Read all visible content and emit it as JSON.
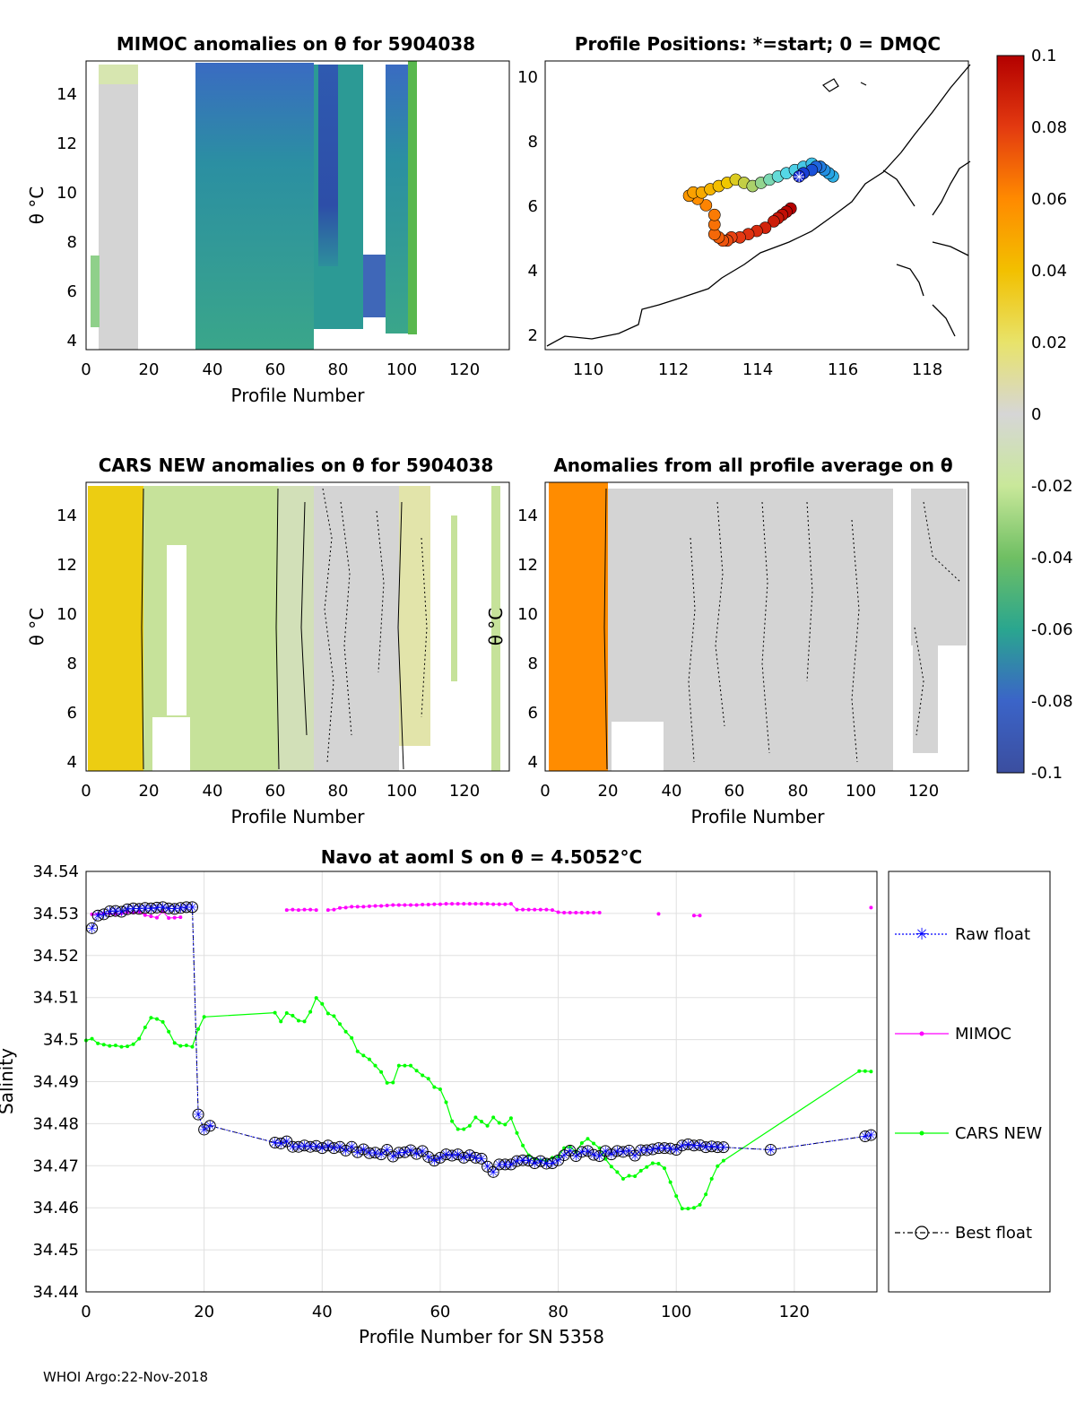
{
  "panels": {
    "mimoc": {
      "title": "MIMOC anomalies on θ  for 5904038",
      "xlabel": "Profile Number",
      "ylabel": "θ °C",
      "xticks": [
        "0",
        "20",
        "40",
        "60",
        "80",
        "100",
        "120"
      ],
      "yticks": [
        "4",
        "6",
        "8",
        "10",
        "12",
        "14"
      ],
      "xlim": [
        0,
        134
      ],
      "ylim": [
        3.5,
        15.2
      ]
    },
    "positions": {
      "title": "Profile Positions: *=start; 0 = DMQC",
      "xticks": [
        "110",
        "112",
        "114",
        "116",
        "118"
      ],
      "yticks": [
        "2",
        "4",
        "6",
        "8",
        "10"
      ],
      "xlim": [
        109,
        119
      ],
      "ylim": [
        1.5,
        10.5
      ]
    },
    "cars": {
      "title": "CARS NEW anomalies on θ for 5904038",
      "xlabel": "Profile Number",
      "ylabel": "θ °C",
      "xticks": [
        "0",
        "20",
        "40",
        "60",
        "80",
        "100",
        "120"
      ],
      "yticks": [
        "4",
        "6",
        "8",
        "10",
        "12",
        "14"
      ],
      "xlim": [
        0,
        134
      ],
      "ylim": [
        3.5,
        15.2
      ]
    },
    "allavg": {
      "title": "Anomalies from all profile average on θ",
      "xlabel": "Profile Number",
      "ylabel": "θ °C",
      "xticks": [
        "0",
        "20",
        "40",
        "60",
        "80",
        "100",
        "120"
      ],
      "yticks": [
        "4",
        "6",
        "8",
        "10",
        "12",
        "14"
      ],
      "xlim": [
        0,
        134
      ],
      "ylim": [
        3.5,
        15.2
      ]
    }
  },
  "colorbar": {
    "ticks": [
      "0.1",
      "0.08",
      "0.06",
      "0.04",
      "0.02",
      "0",
      "-0.02",
      "-0.04",
      "-0.06",
      "-0.08",
      "-0.1"
    ],
    "range": [
      -0.1,
      0.1
    ]
  },
  "chart_data": {
    "type": "line",
    "title": "Navo at aoml S on θ = 4.5052°C",
    "xlabel": "Profile Number for SN 5358",
    "ylabel": "Salinity",
    "xlim": [
      0,
      134
    ],
    "ylim": [
      34.44,
      34.54
    ],
    "xticks": [
      "0",
      "20",
      "40",
      "60",
      "80",
      "100",
      "120"
    ],
    "yticks": [
      "34.44",
      "34.45",
      "34.46",
      "34.47",
      "34.48",
      "34.49",
      "34.5",
      "34.51",
      "34.52",
      "34.53",
      "34.54"
    ],
    "legend": [
      "Raw float",
      "MIMOC",
      "CARS NEW",
      "Best float"
    ],
    "series": [
      {
        "name": "Raw float",
        "color": "#0000ff",
        "x": [
          1,
          2,
          3,
          4,
          5,
          6,
          7,
          8,
          9,
          10,
          11,
          12,
          13,
          14,
          15,
          16,
          17,
          18,
          19,
          20,
          21,
          32,
          33,
          34,
          35,
          36,
          37,
          38,
          39,
          40,
          41,
          42,
          43,
          44,
          45,
          46,
          47,
          48,
          49,
          50,
          51,
          52,
          53,
          54,
          55,
          56,
          57,
          58,
          59,
          60,
          61,
          62,
          63,
          64,
          65,
          66,
          67,
          68,
          69,
          70,
          71,
          72,
          73,
          74,
          75,
          76,
          77,
          78,
          79,
          80,
          81,
          82,
          83,
          84,
          85,
          86,
          87,
          88,
          89,
          90,
          91,
          92,
          93,
          94,
          95,
          96,
          97,
          98,
          99,
          100,
          101,
          102,
          103,
          104,
          105,
          106,
          107,
          108,
          116,
          132,
          133
        ],
        "y": [
          34.5265,
          34.5295,
          34.5298,
          34.5305,
          34.5306,
          34.5304,
          34.531,
          34.5312,
          34.5311,
          34.5313,
          34.5312,
          34.5314,
          34.5315,
          34.5312,
          34.5311,
          34.5313,
          34.5315,
          34.5315,
          34.4822,
          34.4786,
          34.4795,
          34.4755,
          34.4753,
          34.4758,
          34.4745,
          34.4745,
          34.4748,
          34.4745,
          34.4747,
          34.4742,
          34.4748,
          34.4742,
          34.4745,
          34.4736,
          34.4745,
          34.4732,
          34.4739,
          34.473,
          34.4731,
          34.4727,
          34.4738,
          34.4722,
          34.4731,
          34.4732,
          34.4737,
          34.4728,
          34.4735,
          34.4721,
          34.4712,
          34.4719,
          34.4727,
          34.4724,
          34.4727,
          34.4719,
          34.4725,
          34.4719,
          34.4717,
          34.4698,
          34.4685,
          34.4703,
          34.4703,
          34.4703,
          34.4711,
          34.4713,
          34.4712,
          34.4706,
          34.4711,
          34.4705,
          34.4706,
          34.4713,
          34.4725,
          34.4736,
          34.4723,
          34.4733,
          34.4735,
          34.4726,
          34.4723,
          34.4735,
          34.4727,
          34.4735,
          34.4733,
          34.4736,
          34.4724,
          34.4737,
          34.4737,
          34.4739,
          34.4742,
          34.4742,
          34.4741,
          34.4738,
          34.4748,
          34.4751,
          34.4748,
          34.4749,
          34.4744,
          34.4746,
          34.4744,
          34.4744,
          34.4738,
          34.477,
          34.4773
        ]
      },
      {
        "name": "MIMOC",
        "color": "#ff00ff",
        "x": [
          1,
          2,
          3,
          4,
          5,
          6,
          7,
          8,
          9,
          10,
          11,
          12,
          13,
          14,
          15,
          16,
          34,
          35,
          36,
          37,
          38,
          39,
          41,
          42,
          43,
          44,
          45,
          46,
          47,
          48,
          49,
          50,
          51,
          52,
          53,
          54,
          55,
          56,
          57,
          58,
          59,
          60,
          61,
          62,
          63,
          64,
          65,
          66,
          67,
          68,
          69,
          70,
          71,
          72,
          73,
          74,
          75,
          76,
          77,
          78,
          79,
          80,
          81,
          82,
          83,
          84,
          85,
          86,
          87,
          97,
          103,
          104,
          133
        ],
        "y": [
          34.5298,
          34.5298,
          34.53,
          34.53,
          34.5299,
          34.53,
          34.5303,
          34.5302,
          34.5304,
          34.5296,
          34.5293,
          34.529,
          34.5305,
          34.5289,
          34.529,
          34.5291,
          34.5308,
          34.5309,
          34.5308,
          34.5309,
          34.5309,
          34.5308,
          34.5308,
          34.5309,
          34.5313,
          34.5314,
          34.5316,
          34.5316,
          34.5316,
          34.5317,
          34.5318,
          34.5318,
          34.5319,
          34.532,
          34.532,
          34.532,
          34.532,
          34.532,
          34.5321,
          34.5321,
          34.5322,
          34.5322,
          34.5323,
          34.5323,
          34.5323,
          34.5323,
          34.5323,
          34.5323,
          34.5323,
          34.5323,
          34.5322,
          34.5322,
          34.5322,
          34.5323,
          34.5309,
          34.5309,
          34.5309,
          34.5309,
          34.5309,
          34.5309,
          34.5308,
          34.5303,
          34.5302,
          34.5302,
          34.5302,
          34.5302,
          34.5302,
          34.5302,
          34.5302,
          34.5299,
          34.5295,
          34.5295,
          34.5314
        ]
      },
      {
        "name": "CARS NEW",
        "color": "#00ff00",
        "x": [
          0,
          1,
          2,
          3,
          4,
          5,
          6,
          7,
          8,
          9,
          10,
          11,
          12,
          13,
          14,
          15,
          16,
          17,
          18,
          19,
          20,
          32,
          33,
          34,
          35,
          36,
          37,
          38,
          39,
          40,
          41,
          42,
          43,
          44,
          45,
          46,
          47,
          48,
          49,
          50,
          51,
          52,
          53,
          54,
          55,
          56,
          57,
          58,
          59,
          60,
          61,
          62,
          63,
          64,
          65,
          66,
          67,
          68,
          69,
          70,
          71,
          72,
          73,
          74,
          75,
          76,
          77,
          78,
          79,
          80,
          81,
          82,
          83,
          84,
          85,
          86,
          87,
          88,
          89,
          90,
          91,
          92,
          93,
          94,
          95,
          96,
          97,
          98,
          99,
          100,
          101,
          102,
          103,
          104,
          105,
          106,
          107,
          108,
          131,
          132,
          133
        ],
        "y": [
          34.4998,
          34.5002,
          34.4991,
          34.4988,
          34.4985,
          34.4986,
          34.4983,
          34.4984,
          34.4989,
          34.5002,
          34.5029,
          34.5052,
          34.5049,
          34.5042,
          34.5019,
          34.4992,
          34.4985,
          34.4986,
          34.4983,
          34.5025,
          34.5054,
          34.5064,
          34.5043,
          34.5063,
          34.5057,
          34.5045,
          34.5043,
          34.5066,
          34.5099,
          34.5085,
          34.5062,
          34.5056,
          34.5037,
          34.5019,
          34.5004,
          34.4972,
          34.4962,
          34.4953,
          34.4938,
          34.4923,
          34.4897,
          34.4898,
          34.4938,
          34.4938,
          34.4938,
          34.4926,
          34.4915,
          34.4907,
          34.4887,
          34.4882,
          34.4851,
          34.4806,
          34.4787,
          34.4787,
          34.4795,
          34.4815,
          34.4805,
          34.4795,
          34.4815,
          34.4802,
          34.4798,
          34.4813,
          34.4778,
          34.4748,
          34.4725,
          34.4716,
          34.4713,
          34.4712,
          34.4719,
          34.4722,
          34.4742,
          34.4745,
          34.4733,
          34.4754,
          34.4764,
          34.4753,
          34.4742,
          34.4716,
          34.4698,
          34.4685,
          34.4669,
          34.4676,
          34.4675,
          34.4688,
          34.4697,
          34.4706,
          34.4705,
          34.4694,
          34.4661,
          34.4628,
          34.4598,
          34.4598,
          34.46,
          34.4607,
          34.4632,
          34.4669,
          34.4699,
          34.4712,
          34.4925,
          34.4925,
          34.4924
        ]
      },
      {
        "name": "Best float",
        "color": "#000000",
        "x": [
          1,
          2,
          3,
          4,
          5,
          6,
          7,
          8,
          9,
          10,
          11,
          12,
          13,
          14,
          15,
          16,
          17,
          18,
          19,
          20,
          21,
          32,
          33,
          34,
          35,
          36,
          37,
          38,
          39,
          40,
          41,
          42,
          43,
          44,
          45,
          46,
          47,
          48,
          49,
          50,
          51,
          52,
          53,
          54,
          55,
          56,
          57,
          58,
          59,
          60,
          61,
          62,
          63,
          64,
          65,
          66,
          67,
          68,
          69,
          70,
          71,
          72,
          73,
          74,
          75,
          76,
          77,
          78,
          79,
          80,
          81,
          82,
          83,
          84,
          85,
          86,
          87,
          88,
          89,
          90,
          91,
          92,
          93,
          94,
          95,
          96,
          97,
          98,
          99,
          100,
          101,
          102,
          103,
          104,
          105,
          106,
          107,
          108,
          116,
          132,
          133
        ],
        "y": [
          34.5265,
          34.5295,
          34.5298,
          34.5305,
          34.5306,
          34.5304,
          34.531,
          34.5312,
          34.5311,
          34.5313,
          34.5312,
          34.5314,
          34.5315,
          34.5312,
          34.5311,
          34.5313,
          34.5315,
          34.5315,
          34.4822,
          34.4786,
          34.4795,
          34.4755,
          34.4753,
          34.4758,
          34.4745,
          34.4745,
          34.4748,
          34.4745,
          34.4747,
          34.4742,
          34.4748,
          34.4742,
          34.4745,
          34.4736,
          34.4745,
          34.4732,
          34.4739,
          34.473,
          34.4731,
          34.4727,
          34.4738,
          34.4722,
          34.4731,
          34.4732,
          34.4737,
          34.4728,
          34.4735,
          34.4721,
          34.4712,
          34.4719,
          34.4727,
          34.4724,
          34.4727,
          34.4719,
          34.4725,
          34.4719,
          34.4717,
          34.4698,
          34.4685,
          34.4703,
          34.4703,
          34.4703,
          34.4711,
          34.4713,
          34.4712,
          34.4706,
          34.4711,
          34.4705,
          34.4706,
          34.4713,
          34.4725,
          34.4736,
          34.4723,
          34.4733,
          34.4735,
          34.4726,
          34.4723,
          34.4735,
          34.4727,
          34.4735,
          34.4733,
          34.4736,
          34.4724,
          34.4737,
          34.4737,
          34.4739,
          34.4742,
          34.4742,
          34.4741,
          34.4738,
          34.4748,
          34.4751,
          34.4748,
          34.4749,
          34.4744,
          34.4746,
          34.4744,
          34.4744,
          34.4738,
          34.477,
          34.4773
        ]
      }
    ],
    "positions": {
      "lon": [
        115.0,
        115.1,
        115.3,
        115.4,
        115.5,
        115.6,
        115.7,
        115.8,
        115.5,
        115.3,
        115.1,
        114.9,
        114.7,
        114.5,
        114.3,
        114.1,
        113.9,
        113.7,
        113.5,
        113.3,
        113.1,
        112.9,
        112.7,
        112.5,
        112.4,
        112.6,
        112.8,
        113.0,
        113.0,
        113.0,
        113.1,
        113.2,
        113.3,
        113.4,
        113.6,
        113.8,
        114.0,
        114.2,
        114.4,
        114.5,
        114.6,
        114.7,
        114.8
      ],
      "lat": [
        6.9,
        7.0,
        7.1,
        7.2,
        7.2,
        7.1,
        7.0,
        6.9,
        7.2,
        7.3,
        7.2,
        7.1,
        7.0,
        6.9,
        6.8,
        6.7,
        6.6,
        6.7,
        6.8,
        6.7,
        6.6,
        6.5,
        6.4,
        6.4,
        6.3,
        6.2,
        6.0,
        5.7,
        5.4,
        5.1,
        5.0,
        4.9,
        4.9,
        5.0,
        5.0,
        5.1,
        5.2,
        5.3,
        5.5,
        5.6,
        5.7,
        5.8,
        5.9
      ]
    }
  },
  "footer": {
    "credit": "WHOI Argo:22-Nov-2018"
  }
}
